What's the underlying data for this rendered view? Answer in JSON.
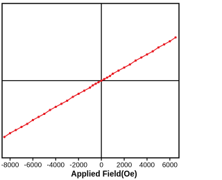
{
  "chart_data": {
    "type": "line",
    "x_label": "Applied Field(Oe)",
    "xlim": [
      -8700,
      6800
    ],
    "xticks": [
      -8000,
      -6000,
      -4000,
      -2000,
      0,
      2000,
      4000,
      6000
    ],
    "ylim": [
      -1,
      1
    ],
    "x": [
      -8500,
      -8000,
      -7500,
      -7000,
      -6500,
      -6000,
      -5500,
      -5000,
      -4500,
      -4000,
      -3500,
      -3000,
      -2500,
      -2000,
      -1500,
      -1000,
      -750,
      -500,
      -250,
      0,
      250,
      500,
      750,
      1000,
      1500,
      2000,
      2500,
      3000,
      3500,
      4000,
      4500,
      5000,
      5500,
      6000,
      6500
    ],
    "series": [
      {
        "color": "#e8141c",
        "values": [
          -0.73,
          -0.68,
          -0.64,
          -0.6,
          -0.56,
          -0.51,
          -0.47,
          -0.43,
          -0.38,
          -0.34,
          -0.3,
          -0.26,
          -0.21,
          -0.17,
          -0.13,
          -0.09,
          -0.06,
          -0.04,
          -0.02,
          0,
          0.02,
          0.04,
          0.06,
          0.09,
          0.13,
          0.17,
          0.21,
          0.26,
          0.3,
          0.34,
          0.38,
          0.43,
          0.47,
          0.51,
          0.56
        ]
      }
    ]
  }
}
